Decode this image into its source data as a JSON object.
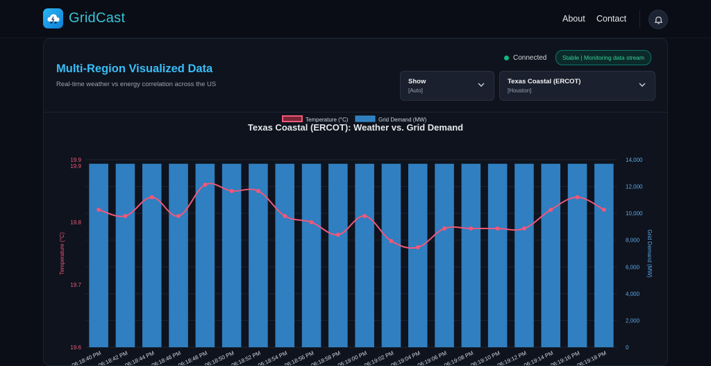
{
  "app": {
    "brand": "GridCast",
    "nav": {
      "about": "About",
      "contact": "Contact"
    }
  },
  "header": {
    "title": "Multi-Region Visualized Data",
    "subtitle": "Real-time weather vs energy correlation across the US",
    "status": {
      "text": "Connected",
      "badge": "Stable | Monitoring data stream"
    },
    "selects": {
      "show": {
        "label": "Show",
        "value": "[Auto]"
      },
      "region": {
        "label": "Texas Coastal (ERCOT)",
        "value": "[Houston]"
      }
    }
  },
  "colors": {
    "accent": "#38bdf8",
    "temperature": "#f0587a",
    "demand": "#2f7fc1",
    "connected": "#10b981"
  },
  "chart_data": {
    "type": "bar",
    "title": "Texas Coastal (ERCOT): Weather vs. Grid Demand",
    "categories": [
      "06:18:40 PM",
      "06:18:42 PM",
      "06:18:44 PM",
      "06:18:46 PM",
      "06:18:48 PM",
      "06:18:50 PM",
      "06:18:52 PM",
      "06:18:54 PM",
      "06:18:56 PM",
      "06:18:58 PM",
      "06:19:00 PM",
      "06:19:02 PM",
      "06:19:04 PM",
      "06:19:06 PM",
      "06:19:08 PM",
      "06:19:10 PM",
      "06:19:12 PM",
      "06:19:14 PM",
      "06:19:16 PM",
      "06:19:18 PM"
    ],
    "series": [
      {
        "name": "Temperature (°C)",
        "type": "line",
        "axis": "left",
        "values": [
          19.82,
          19.81,
          19.84,
          19.81,
          19.86,
          19.85,
          19.85,
          19.81,
          19.8,
          19.78,
          19.81,
          19.77,
          19.76,
          19.79,
          19.79,
          19.79,
          19.79,
          19.82,
          19.84,
          19.82
        ]
      },
      {
        "name": "Grid Demand (MW)",
        "type": "bar",
        "axis": "right",
        "values": [
          13700,
          13700,
          13700,
          13700,
          13700,
          13700,
          13700,
          13700,
          13700,
          13700,
          13700,
          13700,
          13700,
          13700,
          13700,
          13700,
          13700,
          13700,
          13700,
          13700
        ]
      }
    ],
    "y_left": {
      "label": "Temperature (°C)",
      "ylim": [
        19.6,
        19.9
      ],
      "ticks": [
        "19.9",
        "19.9",
        "19.8",
        "19.7",
        "19.6"
      ],
      "tick_values": [
        19.9,
        19.89,
        19.8,
        19.7,
        19.6
      ]
    },
    "y_right": {
      "label": "Grid Demand (MW)",
      "ylim": [
        0,
        14000
      ],
      "ticks": [
        "14,000",
        "12,000",
        "10,000",
        "8,000",
        "6,000",
        "4,000",
        "2,000",
        "0"
      ],
      "tick_values": [
        14000,
        12000,
        10000,
        8000,
        6000,
        4000,
        2000,
        0
      ]
    },
    "grid": true,
    "legend": "top-center"
  }
}
